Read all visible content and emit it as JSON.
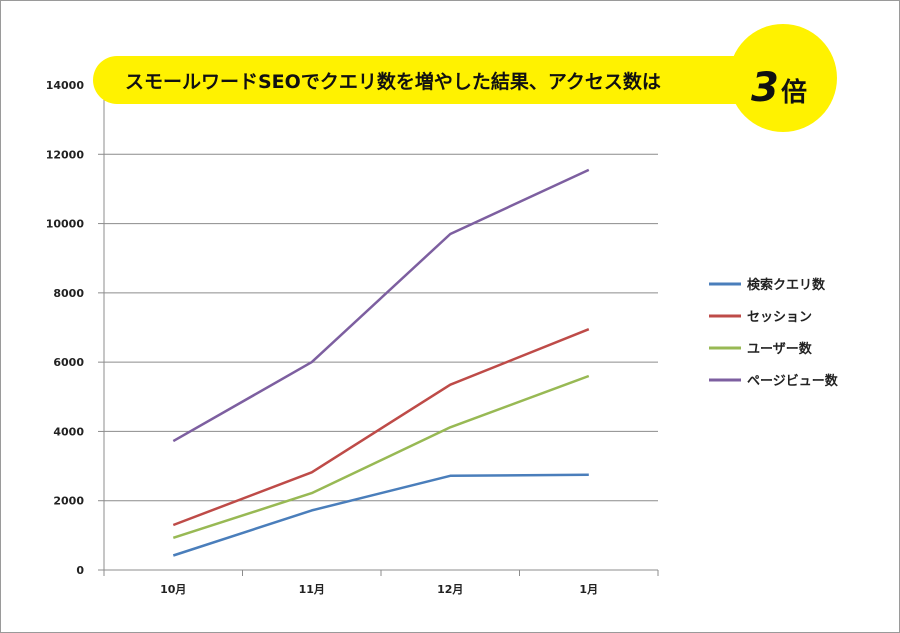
{
  "banner": {
    "text": "スモールワードSEOでクエリ数を増やした結果、アクセス数は",
    "badge_number": "3",
    "badge_unit": "倍",
    "color": "#fff200"
  },
  "chart_data": {
    "type": "line",
    "categories": [
      "10月",
      "11月",
      "12月",
      "1月"
    ],
    "ylim": [
      0,
      14000
    ],
    "yticks": [
      0,
      2000,
      4000,
      6000,
      8000,
      10000,
      12000,
      14000
    ],
    "grid": true,
    "legend_position": "right",
    "series": [
      {
        "name": "検索クエリ数",
        "color": "#4a7ebb",
        "values": [
          420,
          1720,
          2720,
          2750
        ]
      },
      {
        "name": "セッション",
        "color": "#be4b48",
        "values": [
          1300,
          2820,
          5350,
          6950
        ]
      },
      {
        "name": "ユーザー数",
        "color": "#98b954",
        "values": [
          930,
          2220,
          4120,
          5600
        ]
      },
      {
        "name": "ページビュー数",
        "color": "#7d5fa0",
        "values": [
          3720,
          6000,
          9700,
          11550
        ]
      }
    ]
  }
}
